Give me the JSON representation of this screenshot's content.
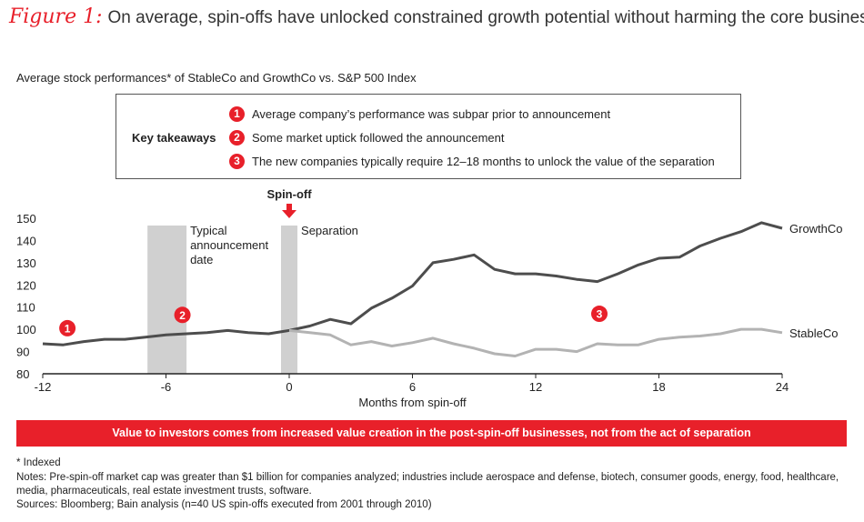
{
  "header": {
    "figure_label": "Figure 1:",
    "title": "On average, spin-offs have unlocked constrained growth potential without harming the core business",
    "subtitle": "Average stock performances* of StableCo and GrowthCo vs. S&P 500 Index"
  },
  "takeaways": {
    "label": "Key takeaways",
    "items": [
      {
        "number": "1",
        "text": "Average company’s performance was subpar prior to announcement"
      },
      {
        "number": "2",
        "text": "Some market uptick followed the announcement"
      },
      {
        "number": "3",
        "text": "The new companies typically require 12–18 months to unlock the value of the separation"
      }
    ]
  },
  "chart_data": {
    "type": "line",
    "x_label": "Months from spin-off",
    "x": [
      -12,
      -11,
      -10,
      -9,
      -8,
      -7,
      -6,
      -5,
      -4,
      -3,
      -2,
      -1,
      0,
      1,
      2,
      3,
      4,
      5,
      6,
      7,
      8,
      9,
      10,
      11,
      12,
      13,
      14,
      15,
      16,
      17,
      18,
      19,
      20,
      21,
      22,
      23,
      24
    ],
    "series": [
      {
        "name": "GrowthCo",
        "color": "#4d4d4d",
        "values": [
          93.5,
          93,
          94.5,
          95.5,
          95.5,
          96.5,
          97.5,
          98,
          98.5,
          99.5,
          98.5,
          98,
          99.5,
          101.5,
          104.5,
          102.5,
          109.5,
          114,
          119.5,
          130,
          131.5,
          133.5,
          127,
          125,
          125,
          124,
          122.5,
          121.5,
          125,
          129,
          132,
          132.5,
          137.5,
          141,
          144,
          148,
          145.5
        ]
      },
      {
        "name": "StableCo",
        "color": "#b3b3b3",
        "values": [
          null,
          null,
          null,
          null,
          null,
          null,
          null,
          null,
          null,
          null,
          null,
          null,
          99.5,
          98.5,
          97.5,
          93,
          94.5,
          92.5,
          94,
          96,
          93.5,
          91.5,
          89,
          88,
          91,
          91,
          90,
          93.5,
          93,
          93,
          95.5,
          96.5,
          97,
          98,
          100,
          100,
          98.5
        ]
      }
    ],
    "xlim": [
      -12,
      24
    ],
    "xticks": [
      -12,
      -6,
      0,
      6,
      12,
      18,
      24
    ],
    "ylim": [
      80,
      150
    ],
    "yticks": [
      80,
      90,
      100,
      110,
      120,
      130,
      140,
      150
    ],
    "shaded_regions": [
      {
        "label": "Typical announcement date",
        "xlim": [
          -6.9,
          -5
        ],
        "color": "#d0d0d0"
      },
      {
        "label": "Separation",
        "xlim": [
          -0.4,
          0.4
        ],
        "color": "#d0d0d0"
      }
    ],
    "event": {
      "label": "Spin-off",
      "x": 0,
      "color": "#e8202a"
    },
    "markers": [
      {
        "label": "1",
        "x": -10.8,
        "y": 100.5
      },
      {
        "label": "2",
        "x": -5.2,
        "y": 106.5
      },
      {
        "label": "3",
        "x": 15.1,
        "y": 107
      }
    ]
  },
  "banner": "Value to investors comes from increased value creation in the post-spin-off businesses, not from the act of separation",
  "footnotes": [
    "* Indexed",
    "Notes: Pre-spin-off market cap was greater than $1 billion for companies analyzed; industries include aerospace and defense, biotech, consumer goods, energy, food, healthcare,",
    "media, pharmaceuticals, real estate investment trusts, software.",
    "Sources: Bloomberg; Bain analysis (n=40 US spin-offs executed from 2001 through 2010)"
  ]
}
